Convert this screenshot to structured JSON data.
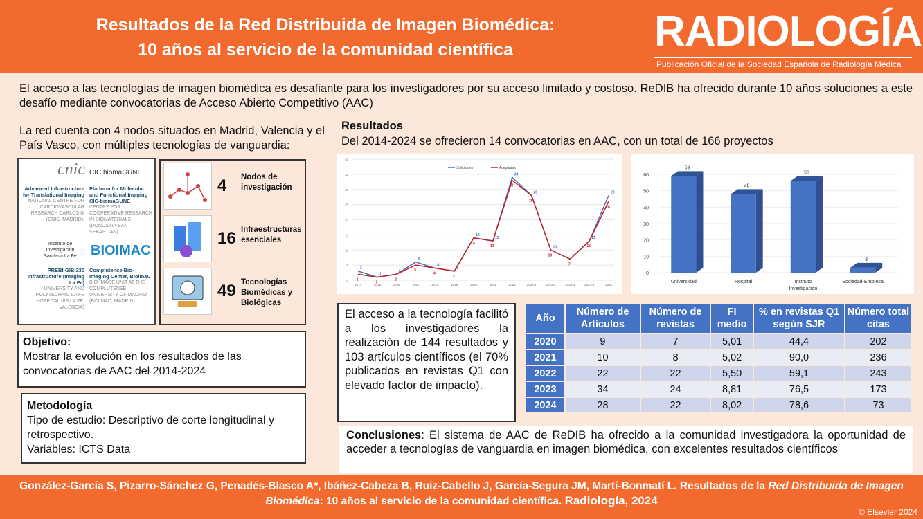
{
  "header": {
    "title_line1": "Resultados de la Red Distribuida de Imagen Biomédica:",
    "title_line2": "10 años al servicio de la comunidad científica",
    "logo": "RADIOLOGÍA",
    "logo_subtitle": "Publicación Oficial de la Sociedad Española de Radiología Médica",
    "brand_color": "#f26a2e"
  },
  "intro": "El acceso a las tecnologías de imagen biomédica es desafiante para los investigadores por su acceso limitado y costoso. ReDIB ha ofrecido durante 10 años soluciones a este desafío mediante convocatorias de Acceso Abierto Competitivo (AAC)",
  "network_text": "La red cuenta con 4 nodos situados en Madrid, Valencia y el País Vasco, con múltiples tecnologías de vanguardia:",
  "institutions": [
    {
      "logo": "cnic",
      "title": "Advanced Infrastructure for Translational Imaging",
      "desc": "NATIONAL CENTRE FOR CARDIOVASCULAR RESEARCH CARLOS III (CNIC, MADRID)."
    },
    {
      "logo": "CIC biomaGUNE",
      "title": "Platform for Molecular and Functional Imaging CIC-biomaGUNE",
      "desc": "CENTRE FOR COOPERATIVE RESEARCH IN BIOMATERIALS (DONOSTIA-SAN SEBASTIAN)."
    },
    {
      "logo": "Instituto de Investigación Sanitaria La Fe",
      "title": "PREBI-GIBI230 Infrastructure (Imaging La Fe)",
      "desc": "UNIVERSITY AND POLYTECHNIC LA FE HOSPITAL (IIS LA FE, VALENCIA)"
    },
    {
      "logo": "BIOIMAC",
      "title": "Complutense Bio-Imaging Center, BioimaC",
      "desc": "BIO-IMAGE UNIT AT THE COMPLUTENSE UNIVERSITY OF MADRID (BIOIMAC, MADRID)"
    }
  ],
  "stats": [
    {
      "icon": "network-nodes-icon",
      "value": "4",
      "label": "Nodos de investigación"
    },
    {
      "icon": "building-gear-icon",
      "value": "16",
      "label": "Infraestructuras esenciales"
    },
    {
      "icon": "medical-scanner-icon",
      "value": "49",
      "label": "Tecnologías Biomédicas y Biológicas"
    }
  ],
  "objetivo": {
    "title": "Objetivo:",
    "text": "Mostrar la evolución en los resultados de las convocatorias de AAC del 2014-2024"
  },
  "metodologia": {
    "title": "Metodología",
    "line1": "Tipo de estudio: Descriptivo de corte longitudinal y retrospectivo.",
    "line2": "Variables: ICTS Data"
  },
  "resultados": {
    "title": "Resultados",
    "subtitle": "Del 2014-2024 se ofrecieron 14 convocatorias en AAC, con un total de 166 proyectos"
  },
  "chart_data": [
    {
      "type": "line",
      "x": [
        "2014",
        "2015",
        "2016",
        "2017",
        "2018",
        "2019",
        "2020",
        "2021",
        "2022",
        "2023-1",
        "2023-2",
        "2023-3",
        "2023-4",
        "2024"
      ],
      "series": [
        {
          "name": "Solicitudes",
          "color": "#4a6fb5",
          "values": [
            3,
            1,
            2,
            6,
            4,
            3,
            14,
            13,
            34,
            28,
            10,
            7,
            13,
            28
          ]
        },
        {
          "name": "Aceptadas",
          "color": "#c0202a",
          "values": [
            2,
            1,
            2,
            5,
            4,
            3,
            14,
            13,
            33,
            28,
            10,
            7,
            13,
            26
          ]
        }
      ],
      "ylim": [
        0,
        40
      ],
      "yticks": [
        0,
        5,
        10,
        15,
        20,
        25,
        30,
        35,
        40
      ],
      "grid": true,
      "legend": "top"
    },
    {
      "type": "bar",
      "categories": [
        "Universidad",
        "Hospital",
        "Instituto Investigación",
        "Sociedad-Empresa"
      ],
      "values": [
        59,
        48,
        56,
        3
      ],
      "ylim": [
        0,
        60
      ],
      "yticks": [
        0,
        10,
        20,
        30,
        40,
        50,
        60
      ],
      "grid": true,
      "color": "#4472c4"
    }
  ],
  "impact_text": "El acceso a la tecnología facilitó a los investigadores la realización de 144 resultados y 103 artículos científicos (el 70% publicados en revistas Q1 con elevado factor de impacto).",
  "table": {
    "headers": [
      "Año",
      "Número de Artículos",
      "Número de revistas",
      "FI medio",
      "% en revistas Q1 según SJR",
      "Número total citas"
    ],
    "rows": [
      [
        "2020",
        "9",
        "7",
        "5,01",
        "44,4",
        "202"
      ],
      [
        "2021",
        "10",
        "8",
        "5,02",
        "90,0",
        "236"
      ],
      [
        "2022",
        "22",
        "22",
        "5,50",
        "59,1",
        "243"
      ],
      [
        "2023",
        "34",
        "24",
        "8,81",
        "76,5",
        "173"
      ],
      [
        "2024",
        "28",
        "22",
        "8,02",
        "78,6",
        "73"
      ]
    ]
  },
  "conclusiones": {
    "label": "Conclusiones",
    "text": ": El sistema de AAC de ReDIB ha ofrecido a la comunidad investigadora la oportunidad de acceder a tecnologías de vanguardia en imagen biomédica, con excelentes resultados científicos"
  },
  "footer": {
    "authors": "González-García S, Pizarro-Sánchez G, Penadés-Blasco  A*, Ibáñez-Cabeza B, Ruiz-Cabello J, García-Segura JM, Martí-Bonmatí L. Resultados de la ",
    "italic": "Red Distribuida de Imagen Biomédica",
    "rest": ": 10 años al servicio de la comunidad científica.  ",
    "journal": "Radiología, 2024",
    "copyright": "© Elsevier 2024"
  }
}
